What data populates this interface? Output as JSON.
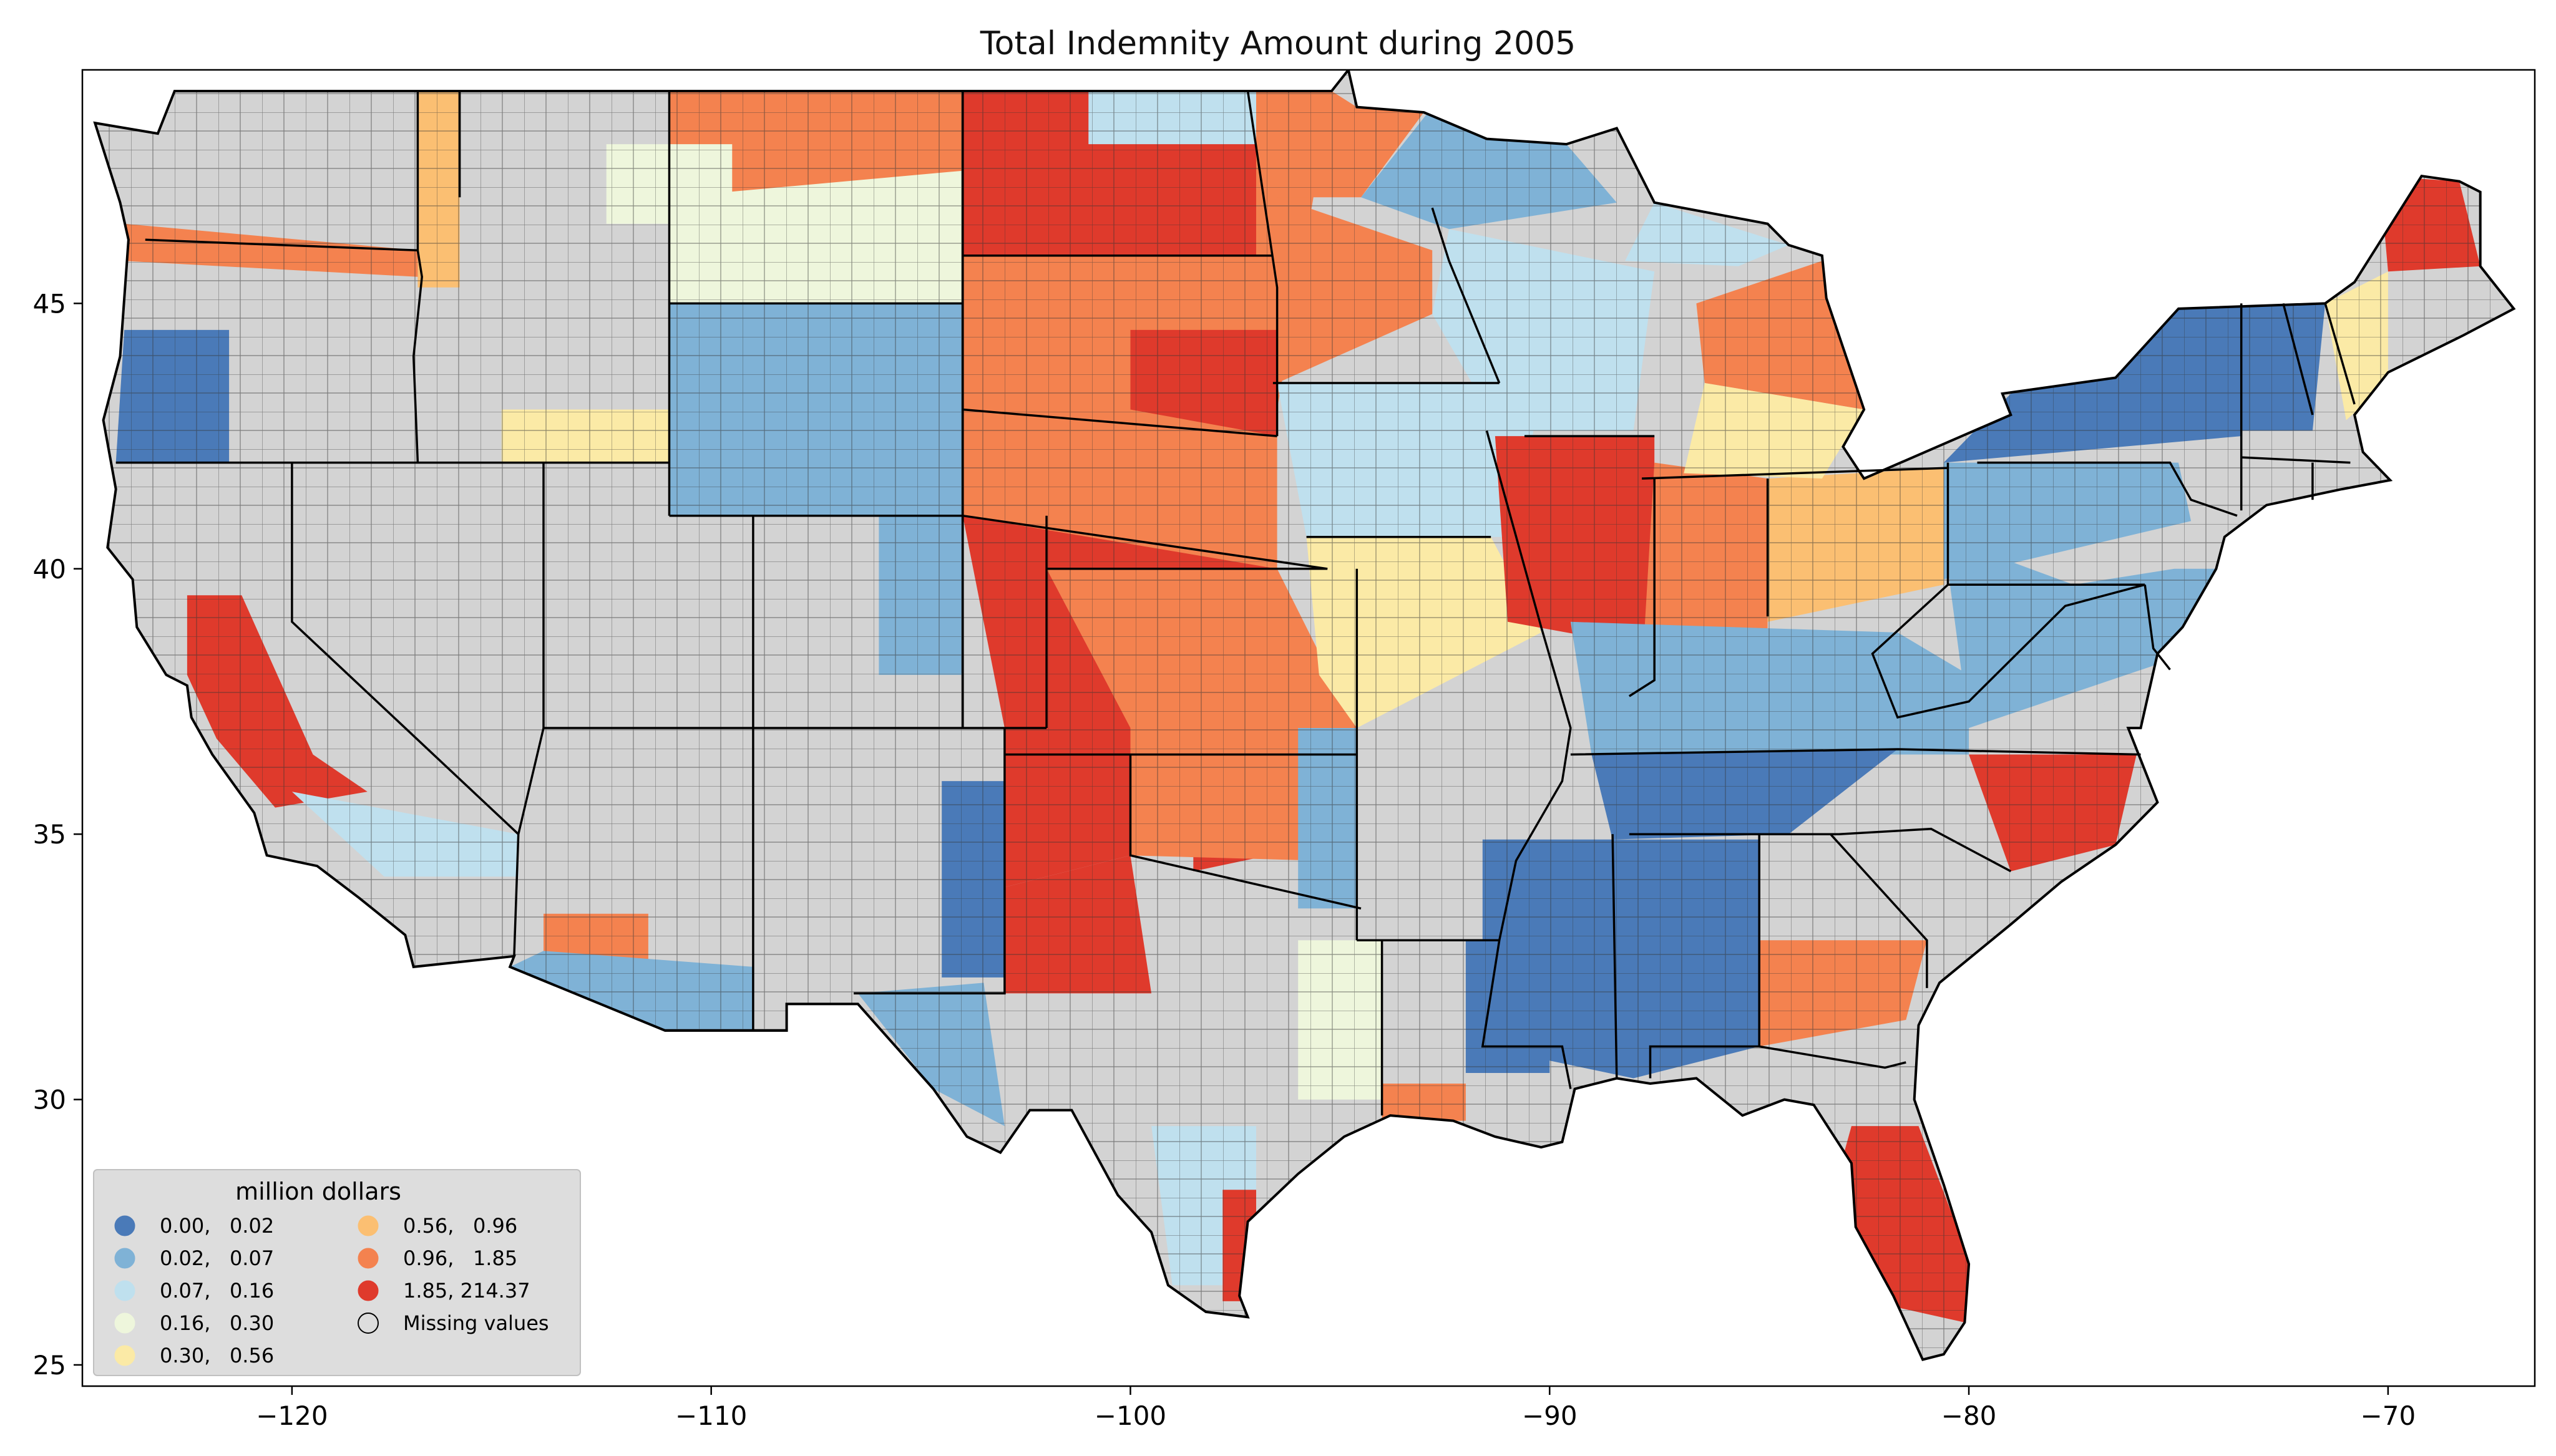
{
  "title": "Total Indemnity Amount during 2005",
  "axes": {
    "x_range": [
      -125,
      -66.5
    ],
    "y_range": [
      24.6,
      49.4
    ],
    "x_ticks": [
      {
        "value": -120,
        "label": "−120"
      },
      {
        "value": -110,
        "label": "−110"
      },
      {
        "value": -100,
        "label": "−100"
      },
      {
        "value": -90,
        "label": "−90"
      },
      {
        "value": -80,
        "label": "−80"
      },
      {
        "value": -70,
        "label": "−70"
      }
    ],
    "y_ticks": [
      {
        "value": 25,
        "label": "25"
      },
      {
        "value": 30,
        "label": "30"
      },
      {
        "value": 35,
        "label": "35"
      },
      {
        "value": 40,
        "label": "40"
      },
      {
        "value": 45,
        "label": "45"
      }
    ]
  },
  "legend": {
    "title": "million dollars",
    "placement": "lower-left",
    "classes": [
      {
        "label": "0.00,   0.02",
        "color": "#4a7ab8"
      },
      {
        "label": "0.02,   0.07",
        "color": "#7fb2d6"
      },
      {
        "label": "0.07,   0.16",
        "color": "#bfe0ee"
      },
      {
        "label": "0.16,   0.30",
        "color": "#eef6dc"
      },
      {
        "label": "0.30,   0.56",
        "color": "#fbeaa6"
      },
      {
        "label": "0.56,   0.96",
        "color": "#fbbf72"
      },
      {
        "label": "0.96,   1.85",
        "color": "#f4824f"
      },
      {
        "label": "1.85, 214.37",
        "color": "#df3a2c"
      },
      {
        "label": "Missing values",
        "color": "#d3d3d3"
      }
    ]
  },
  "colors": {
    "missing": "#d3d3d3",
    "state_border": "#000000",
    "county_border": "#333333",
    "legend_bg": "#dcdcdc"
  }
}
